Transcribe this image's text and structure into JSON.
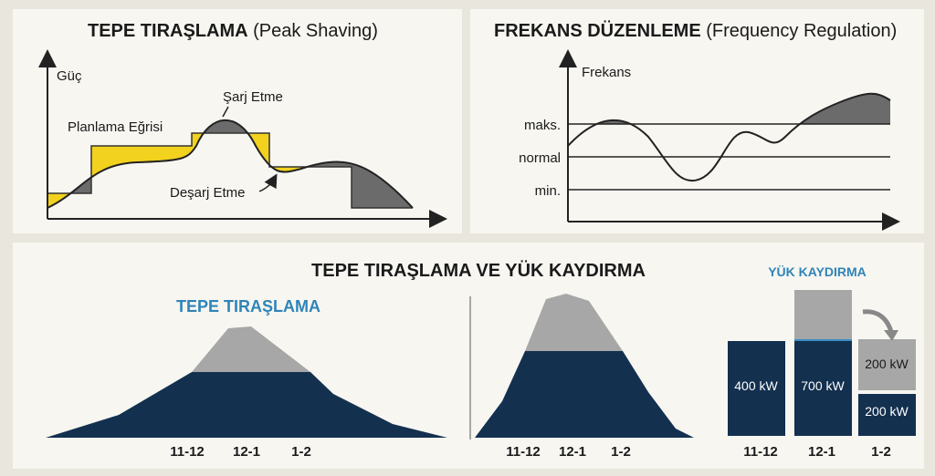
{
  "peak_shaving_panel": {
    "title_bold": "TEPE TIRAŞLAMA",
    "title_rest": "(Peak Shaving)",
    "y_axis": "Güç",
    "labels": [
      "Planlama Eğrisi",
      "Şarj Etme",
      "Deşarj Etme"
    ]
  },
  "frequency_panel": {
    "title_bold": "FREKANS DÜZENLEME",
    "title_rest": "(Frequency Regulation)",
    "y_axis": "Frekans",
    "levels": [
      "maks.",
      "normal",
      "min."
    ]
  },
  "bottom_panel": {
    "title": "TEPE TIRAŞLAMA VE YÜK KAYDIRMA",
    "left_title": "TEPE TIRAŞLAMA",
    "left_times": [
      "11-12",
      "12-1",
      "1-2"
    ],
    "middle_times": [
      "11-12",
      "12-1",
      "1-2"
    ],
    "load_shift_title": "YÜK KAYDIRMA",
    "load_shift_bars": [
      "400 kW",
      "700 kW",
      "200 kW",
      "200 kW"
    ],
    "load_shift_times": [
      "11-12",
      "12-1",
      "1-2"
    ]
  }
}
